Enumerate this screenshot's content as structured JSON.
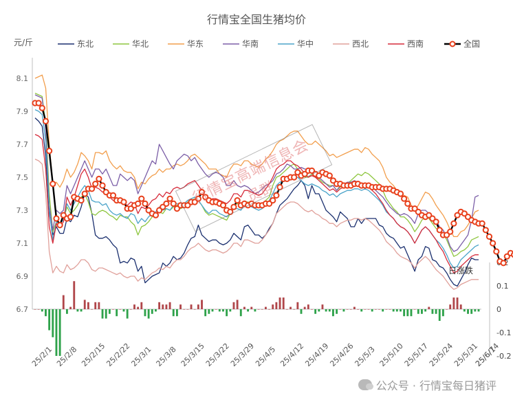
{
  "chart_data": {
    "type": "line",
    "title": "行情宝全国生猪均价",
    "y_unit": "元/斤",
    "ylim": [
      6.7,
      8.2
    ],
    "yticks": [
      6.7,
      6.9,
      7.1,
      7.3,
      7.5,
      7.7,
      7.9,
      8.1
    ],
    "y2lim": [
      -0.2,
      0.2
    ],
    "y2ticks": [
      0.2,
      0.1,
      0,
      -0.1,
      -0.2
    ],
    "x_tick_labels": [
      "25/2/1",
      "25/2/8",
      "25/2/15",
      "25/2/22",
      "25/3/1",
      "25/3/8",
      "25/3/15",
      "25/3/22",
      "25/3/29",
      "25/4/5",
      "25/4/12",
      "25/4/19",
      "25/4/26",
      "25/5/3",
      "25/5/10",
      "25/5/17",
      "25/5/24",
      "25/5/31",
      "25/6/7",
      "25/6/14"
    ],
    "annotation": "日涨跌",
    "legend_position": "top",
    "grid": false,
    "series": [
      {
        "name": "东北",
        "color": "#1a2f6e",
        "values": [
          7.86,
          7.84,
          7.81,
          7.63,
          7.28,
          7.15,
          7.2,
          7.16,
          7.16,
          7.25,
          7.23,
          7.27,
          7.26,
          7.32,
          7.4,
          7.38,
          7.28,
          7.15,
          7.13,
          7.13,
          7.14,
          7.12,
          7.09,
          7.07,
          6.98,
          6.99,
          6.98,
          7.01,
          7.0,
          6.93,
          6.96,
          6.86,
          6.88,
          6.9,
          6.91,
          6.92,
          6.98,
          6.96,
          6.98,
          7.02,
          7.0,
          7.01,
          7.04,
          7.09,
          7.13,
          7.14,
          7.21,
          7.15,
          7.13,
          7.11,
          7.12,
          7.12,
          7.1,
          7.09,
          7.1,
          7.12,
          7.16,
          7.14,
          7.12,
          7.2,
          7.21,
          7.18,
          7.15,
          7.15,
          7.13,
          7.15,
          7.19,
          7.22,
          7.28,
          7.33,
          7.35,
          7.37,
          7.4,
          7.43,
          7.45,
          7.48,
          7.45,
          7.37,
          7.45,
          7.4,
          7.4,
          7.35,
          7.3,
          7.28,
          7.26,
          7.23,
          7.29,
          7.27,
          7.25,
          7.2,
          7.2,
          7.25,
          7.22,
          7.25,
          7.25,
          7.25,
          7.25,
          7.21,
          7.2,
          7.16,
          7.14,
          7.13,
          7.1,
          7.07,
          7.08,
          7.03,
          6.98,
          6.93,
          7.0,
          7.02,
          7.08,
          7.07,
          7.0,
          6.99,
          6.96,
          6.95,
          6.92,
          6.88,
          6.85,
          6.84,
          6.88,
          6.92,
          6.97,
          7.01,
          7.0,
          7.0
        ]
      },
      {
        "name": "华北",
        "color": "#8ec63f",
        "values": [
          8.01,
          8.0,
          7.99,
          7.82,
          7.4,
          7.17,
          7.23,
          7.22,
          7.24,
          7.32,
          7.28,
          7.3,
          7.33,
          7.38,
          7.4,
          7.35,
          7.28,
          7.27,
          7.29,
          7.3,
          7.29,
          7.27,
          7.26,
          7.24,
          7.27,
          7.26,
          7.26,
          7.23,
          7.21,
          7.15,
          7.2,
          7.21,
          7.23,
          7.26,
          7.27,
          7.29,
          7.28,
          7.31,
          7.3,
          7.32,
          7.33,
          7.31,
          7.32,
          7.35,
          7.36,
          7.37,
          7.36,
          7.33,
          7.29,
          7.27,
          7.28,
          7.27,
          7.26,
          7.25,
          7.24,
          7.28,
          7.33,
          7.34,
          7.33,
          7.35,
          7.35,
          7.34,
          7.33,
          7.32,
          7.33,
          7.36,
          7.38,
          7.45,
          7.5,
          7.51,
          7.53,
          7.55,
          7.57,
          7.58,
          7.55,
          7.53,
          7.5,
          7.5,
          7.52,
          7.5,
          7.49,
          7.47,
          7.46,
          7.45,
          7.45,
          7.42,
          7.44,
          7.45,
          7.46,
          7.48,
          7.5,
          7.52,
          7.51,
          7.53,
          7.52,
          7.5,
          7.48,
          7.46,
          7.42,
          7.37,
          7.34,
          7.31,
          7.29,
          7.26,
          7.26,
          7.24,
          7.21,
          7.17,
          7.2,
          7.24,
          7.26,
          7.25,
          7.22,
          7.19,
          7.18,
          7.16,
          7.12,
          7.07,
          7.02,
          7.03,
          7.05,
          7.06,
          7.08,
          7.12,
          7.13,
          7.14
        ]
      },
      {
        "name": "华东",
        "color": "#f29e4c",
        "values": [
          8.1,
          8.11,
          8.12,
          8.04,
          7.7,
          7.46,
          7.47,
          7.44,
          7.48,
          7.55,
          7.5,
          7.53,
          7.58,
          7.65,
          7.63,
          7.6,
          7.55,
          7.65,
          7.65,
          7.64,
          7.66,
          7.6,
          7.57,
          7.55,
          7.57,
          7.54,
          7.53,
          7.53,
          7.5,
          7.43,
          7.47,
          7.46,
          7.49,
          7.51,
          7.52,
          7.55,
          7.53,
          7.55,
          7.55,
          7.57,
          7.58,
          7.57,
          7.58,
          7.6,
          7.63,
          7.64,
          7.62,
          7.6,
          7.58,
          7.55,
          7.55,
          7.55,
          7.52,
          7.51,
          7.5,
          7.55,
          7.58,
          7.58,
          7.57,
          7.6,
          7.6,
          7.58,
          7.57,
          7.56,
          7.58,
          7.61,
          7.63,
          7.66,
          7.7,
          7.72,
          7.73,
          7.75,
          7.77,
          7.78,
          7.78,
          7.75,
          7.72,
          7.7,
          7.7,
          7.72,
          7.7,
          7.68,
          7.66,
          7.63,
          7.64,
          7.62,
          7.63,
          7.64,
          7.65,
          7.66,
          7.67,
          7.67,
          7.65,
          7.68,
          7.67,
          7.64,
          7.62,
          7.6,
          7.56,
          7.5,
          7.47,
          7.45,
          7.42,
          7.4,
          7.39,
          7.38,
          7.33,
          7.3,
          7.33,
          7.37,
          7.41,
          7.4,
          7.37,
          7.33,
          7.3,
          7.27,
          7.23,
          7.18,
          7.14,
          7.14,
          7.17,
          7.18,
          7.21,
          7.25,
          7.29,
          7.3
        ]
      },
      {
        "name": "华南",
        "color": "#7b5ea7",
        "values": [
          8.0,
          7.99,
          7.98,
          7.78,
          7.33,
          7.18,
          7.3,
          7.28,
          7.3,
          7.45,
          7.4,
          7.45,
          7.5,
          7.55,
          7.6,
          7.55,
          7.5,
          7.55,
          7.55,
          7.52,
          7.55,
          7.5,
          7.45,
          7.45,
          7.52,
          7.5,
          7.48,
          7.5,
          7.48,
          7.4,
          7.45,
          7.5,
          7.55,
          7.6,
          7.58,
          7.7,
          7.66,
          7.62,
          7.58,
          7.55,
          7.6,
          7.62,
          7.64,
          7.63,
          7.6,
          7.62,
          7.58,
          7.55,
          7.52,
          7.5,
          7.52,
          7.53,
          7.52,
          7.5,
          7.45,
          7.45,
          7.48,
          7.45,
          7.44,
          7.45,
          7.44,
          7.42,
          7.4,
          7.41,
          7.43,
          7.45,
          7.46,
          7.48,
          7.52,
          7.53,
          7.55,
          7.58,
          7.57,
          7.55,
          7.55,
          7.56,
          7.55,
          7.55,
          7.54,
          7.5,
          7.5,
          7.48,
          7.46,
          7.44,
          7.45,
          7.42,
          7.45,
          7.46,
          7.47,
          7.47,
          7.48,
          7.47,
          7.45,
          7.46,
          7.46,
          7.44,
          7.42,
          7.4,
          7.38,
          7.35,
          7.32,
          7.3,
          7.28,
          7.27,
          7.28,
          7.27,
          7.25,
          7.22,
          7.28,
          7.3,
          7.3,
          7.28,
          7.26,
          7.24,
          7.2,
          7.18,
          7.14,
          7.08,
          7.05,
          7.06,
          7.09,
          7.12,
          7.15,
          7.24,
          7.38,
          7.39
        ]
      },
      {
        "name": "华中",
        "color": "#4aa3c9",
        "values": [
          7.91,
          7.9,
          7.88,
          7.72,
          7.3,
          7.12,
          7.23,
          7.22,
          7.24,
          7.34,
          7.3,
          7.34,
          7.38,
          7.42,
          7.45,
          7.42,
          7.36,
          7.35,
          7.35,
          7.33,
          7.34,
          7.3,
          7.28,
          7.27,
          7.28,
          7.26,
          7.25,
          7.28,
          7.27,
          7.22,
          7.25,
          7.23,
          7.26,
          7.28,
          7.29,
          7.32,
          7.3,
          7.31,
          7.3,
          7.33,
          7.34,
          7.33,
          7.34,
          7.36,
          7.37,
          7.38,
          7.36,
          7.33,
          7.3,
          7.28,
          7.3,
          7.3,
          7.28,
          7.27,
          7.26,
          7.28,
          7.31,
          7.31,
          7.3,
          7.33,
          7.33,
          7.32,
          7.31,
          7.3,
          7.31,
          7.33,
          7.36,
          7.4,
          7.45,
          7.47,
          7.48,
          7.5,
          7.51,
          7.5,
          7.5,
          7.48,
          7.46,
          7.45,
          7.46,
          7.45,
          7.44,
          7.42,
          7.41,
          7.39,
          7.4,
          7.38,
          7.4,
          7.41,
          7.42,
          7.42,
          7.43,
          7.43,
          7.42,
          7.43,
          7.42,
          7.4,
          7.38,
          7.36,
          7.33,
          7.29,
          7.27,
          7.25,
          7.22,
          7.2,
          7.19,
          7.17,
          7.14,
          7.1,
          7.14,
          7.18,
          7.2,
          7.18,
          7.15,
          7.12,
          7.1,
          7.07,
          7.03,
          6.98,
          6.95,
          6.96,
          7.0,
          7.02,
          7.04,
          7.06,
          7.08,
          7.09
        ]
      },
      {
        "name": "西北",
        "color": "#e0a09a",
        "values": [
          7.61,
          7.6,
          7.58,
          7.4,
          7.05,
          6.92,
          6.96,
          6.93,
          6.92,
          6.97,
          6.94,
          6.95,
          6.97,
          7.0,
          7.0,
          6.98,
          6.94,
          6.93,
          6.95,
          6.95,
          6.94,
          6.93,
          6.92,
          6.91,
          6.92,
          6.9,
          6.89,
          6.9,
          6.9,
          6.87,
          6.89,
          6.88,
          6.9,
          6.92,
          6.93,
          6.95,
          6.94,
          6.96,
          6.95,
          6.98,
          7.0,
          7.0,
          7.02,
          7.05,
          7.07,
          7.08,
          7.1,
          7.08,
          7.06,
          7.05,
          7.06,
          7.06,
          7.05,
          7.04,
          7.05,
          7.07,
          7.1,
          7.1,
          7.08,
          7.12,
          7.12,
          7.11,
          7.1,
          7.1,
          7.12,
          7.15,
          7.18,
          7.22,
          7.28,
          7.3,
          7.32,
          7.34,
          7.35,
          7.35,
          7.34,
          7.32,
          7.3,
          7.29,
          7.3,
          7.28,
          7.27,
          7.25,
          7.24,
          7.22,
          7.22,
          7.2,
          7.22,
          7.23,
          7.24,
          7.24,
          7.25,
          7.25,
          7.24,
          7.25,
          7.24,
          7.22,
          7.2,
          7.18,
          7.15,
          7.11,
          7.09,
          7.07,
          7.04,
          7.02,
          7.01,
          7.0,
          6.98,
          6.95,
          6.98,
          7.0,
          7.02,
          7.0,
          6.97,
          6.94,
          6.92,
          6.9,
          6.87,
          6.84,
          6.82,
          6.83,
          6.85,
          6.86,
          6.87,
          6.88,
          6.88,
          6.88
        ]
      },
      {
        "name": "西南",
        "color": "#d62a3a",
        "values": [
          7.76,
          7.75,
          7.73,
          7.55,
          7.2,
          7.1,
          7.22,
          7.2,
          7.23,
          7.38,
          7.33,
          7.38,
          7.45,
          7.52,
          7.55,
          7.5,
          7.43,
          7.44,
          7.43,
          7.41,
          7.42,
          7.38,
          7.36,
          7.35,
          7.36,
          7.34,
          7.33,
          7.35,
          7.34,
          7.28,
          7.32,
          7.31,
          7.33,
          7.36,
          7.37,
          7.4,
          7.38,
          7.41,
          7.4,
          7.43,
          7.44,
          7.43,
          7.44,
          7.46,
          7.47,
          7.48,
          7.45,
          7.42,
          7.38,
          7.36,
          7.37,
          7.37,
          7.36,
          7.35,
          7.34,
          7.36,
          7.4,
          7.4,
          7.38,
          7.42,
          7.42,
          7.41,
          7.4,
          7.39,
          7.4,
          7.43,
          7.46,
          7.5,
          7.55,
          7.57,
          7.58,
          7.6,
          7.6,
          7.58,
          7.57,
          7.55,
          7.52,
          7.5,
          7.51,
          7.5,
          7.48,
          7.46,
          7.44,
          7.42,
          7.43,
          7.41,
          7.43,
          7.44,
          7.45,
          7.45,
          7.46,
          7.46,
          7.44,
          7.45,
          7.44,
          7.42,
          7.4,
          7.37,
          7.34,
          7.3,
          7.27,
          7.25,
          7.22,
          7.2,
          7.19,
          7.17,
          7.14,
          7.1,
          7.14,
          7.18,
          7.2,
          7.18,
          7.15,
          7.12,
          7.08,
          7.05,
          7.0,
          6.96,
          6.92,
          6.93,
          6.96,
          6.98,
          7.0,
          7.02,
          7.03,
          7.03
        ]
      },
      {
        "name": "全国",
        "color": "#000000",
        "marker_color": "#e8401c",
        "values": [
          7.95,
          7.95,
          7.92,
          7.84,
          7.66,
          7.46,
          7.25,
          7.21,
          7.27,
          7.25,
          7.26,
          7.38,
          7.37,
          7.36,
          7.4,
          7.43,
          7.43,
          7.46,
          7.49,
          7.45,
          7.41,
          7.39,
          7.39,
          7.36,
          7.36,
          7.35,
          7.31,
          7.31,
          7.33,
          7.34,
          7.37,
          7.34,
          7.3,
          7.28,
          7.27,
          7.3,
          7.32,
          7.34,
          7.37,
          7.34,
          7.31,
          7.33,
          7.33,
          7.33,
          7.35,
          7.35,
          7.37,
          7.41,
          7.38,
          7.36,
          7.35,
          7.35,
          7.34,
          7.33,
          7.3,
          7.29,
          7.32,
          7.36,
          7.33,
          7.34,
          7.33,
          7.34,
          7.33,
          7.33,
          7.33,
          7.34,
          7.34,
          7.36,
          7.39,
          7.44,
          7.49,
          7.49,
          7.5,
          7.5,
          7.53,
          7.51,
          7.52,
          7.54,
          7.54,
          7.52,
          7.51,
          7.53,
          7.52,
          7.51,
          7.48,
          7.46,
          7.46,
          7.45,
          7.45,
          7.45,
          7.46,
          7.46,
          7.45,
          7.45,
          7.45,
          7.44,
          7.44,
          7.44,
          7.43,
          7.43,
          7.43,
          7.42,
          7.41,
          7.4,
          7.37,
          7.34,
          7.31,
          7.31,
          7.29,
          7.27,
          7.26,
          7.27,
          7.25,
          7.23,
          7.18,
          7.15,
          7.15,
          7.17,
          7.22,
          7.27,
          7.29,
          7.28,
          7.26,
          7.24,
          7.23,
          7.22,
          7.22,
          7.18,
          7.14,
          7.1,
          7.05,
          6.99,
          6.98,
          7.02,
          7.04,
          7.03,
          7.05,
          7.08,
          7.11,
          7.14,
          7.15
        ]
      }
    ],
    "daily_change": [
      0.0,
      0.0,
      -0.01,
      -0.03,
      -0.09,
      -0.12,
      -0.2,
      -0.2,
      0.06,
      -0.02,
      0.01,
      0.12,
      -0.01,
      -0.01,
      0.04,
      0.03,
      0.0,
      0.03,
      0.03,
      -0.04,
      -0.04,
      -0.02,
      0.0,
      -0.03,
      0.0,
      -0.01,
      -0.04,
      0.0,
      0.02,
      0.01,
      0.03,
      -0.03,
      -0.04,
      -0.02,
      -0.01,
      0.03,
      0.02,
      0.02,
      0.03,
      -0.03,
      -0.03,
      0.02,
      0.0,
      0.0,
      0.02,
      0.0,
      0.02,
      0.04,
      -0.03,
      -0.02,
      -0.01,
      0.0,
      -0.01,
      -0.01,
      -0.03,
      -0.01,
      0.03,
      0.04,
      -0.03,
      0.01,
      -0.01,
      0.01,
      -0.01,
      0.0,
      0.0,
      0.01,
      0.0,
      0.02,
      0.03,
      0.05,
      0.05,
      0.0,
      0.01,
      0.0,
      0.03,
      -0.02,
      0.01,
      0.02,
      0.0,
      -0.02,
      -0.01,
      0.02,
      -0.01,
      -0.01,
      -0.03,
      -0.02,
      0.0,
      -0.01,
      0.0,
      0.0,
      0.01,
      0.0,
      -0.01,
      0.0,
      0.0,
      -0.01,
      0.0,
      0.0,
      -0.01,
      0.0,
      0.0,
      -0.01,
      -0.01,
      -0.01,
      -0.03,
      -0.03,
      -0.03,
      0.0,
      -0.02,
      -0.02,
      -0.01,
      0.01,
      -0.02,
      -0.02,
      -0.05,
      -0.03,
      0.0,
      0.02,
      0.05,
      0.05,
      0.02,
      -0.01,
      -0.02,
      -0.02,
      -0.01,
      -0.01,
      0.0,
      -0.04,
      -0.04,
      -0.04,
      -0.05,
      -0.06,
      -0.01,
      0.04,
      0.02,
      -0.01,
      0.02,
      0.03,
      0.03,
      0.03,
      0.01
    ]
  },
  "watermark": {
    "line1": "行情宝高端信息会",
    "line2": "员群"
  },
  "footer": {
    "text": "公众号 · 行情宝每日猪评"
  }
}
